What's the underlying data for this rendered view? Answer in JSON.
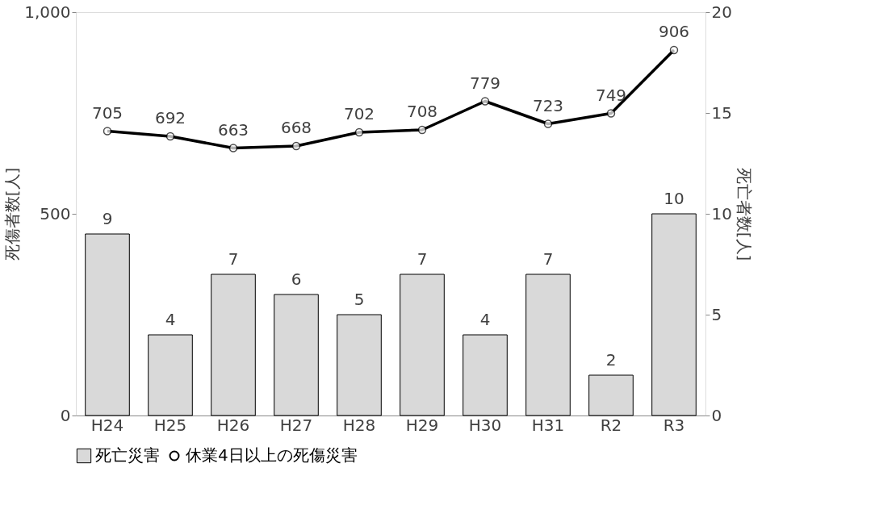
{
  "chart_data": {
    "type": "bar",
    "categories": [
      "H24",
      "H25",
      "H26",
      "H27",
      "H28",
      "H29",
      "H30",
      "H31",
      "R2",
      "R3"
    ],
    "series": [
      {
        "name": "死亡災害",
        "axis": "y2",
        "color": "#d9d9d9",
        "values": [
          9,
          4,
          7,
          6,
          5,
          7,
          4,
          7,
          2,
          10
        ]
      },
      {
        "name": "休業4日以上の死傷災害",
        "type": "line",
        "color": "#000000",
        "values": [
          705,
          692,
          663,
          668,
          702,
          708,
          779,
          723,
          749,
          906
        ]
      }
    ],
    "ylabel": "死傷者数[人]",
    "y2label": "死亡者数[人]",
    "ylim": [
      0,
      1000
    ],
    "yticks": [
      0,
      500,
      {
        "value": 1000,
        "label": "1,000"
      }
    ],
    "y2lim": [
      0,
      20
    ],
    "y2ticks": [
      0,
      5,
      10,
      15,
      20
    ],
    "data_labels": true,
    "marker": "circle",
    "legend": "bottom",
    "grid": false
  }
}
